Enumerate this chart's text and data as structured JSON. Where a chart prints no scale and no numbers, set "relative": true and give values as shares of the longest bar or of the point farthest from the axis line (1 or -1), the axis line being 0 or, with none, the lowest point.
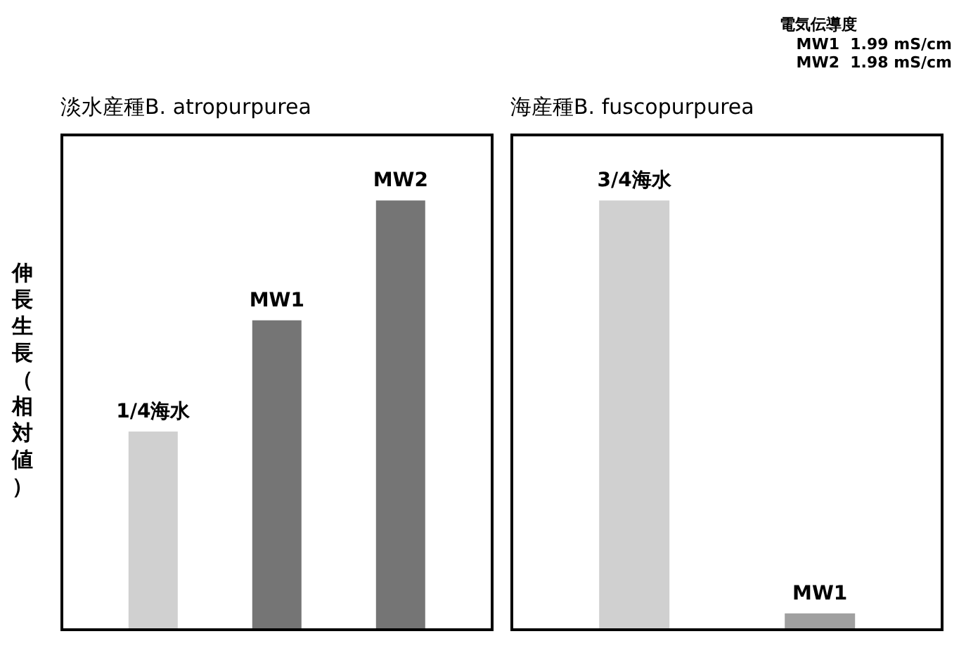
{
  "chart_data": [
    {
      "type": "bar",
      "title": "淡水産種B. atropurpurea",
      "ylabel": "伸長生長（相対値）",
      "relative": true,
      "categories": [
        "1/4海水",
        "MW1",
        "MW2"
      ],
      "values": [
        0.46,
        0.72,
        1
      ],
      "colors": [
        "#d0d0d0",
        "#757575",
        "#757575"
      ],
      "grid": false,
      "legend": false
    },
    {
      "type": "bar",
      "title": "海産種B. fuscopurpurea",
      "relative": true,
      "categories": [
        "3/4海水",
        "MW1"
      ],
      "values": [
        1,
        0.035
      ],
      "colors": [
        "#d0d0d0",
        "#a0a0a0"
      ],
      "grid": false,
      "legend": false,
      "annotations": [
        "電気伝導度",
        "MW1  1.99 mS/cm",
        "MW2  1.98 mS/cm"
      ]
    }
  ]
}
